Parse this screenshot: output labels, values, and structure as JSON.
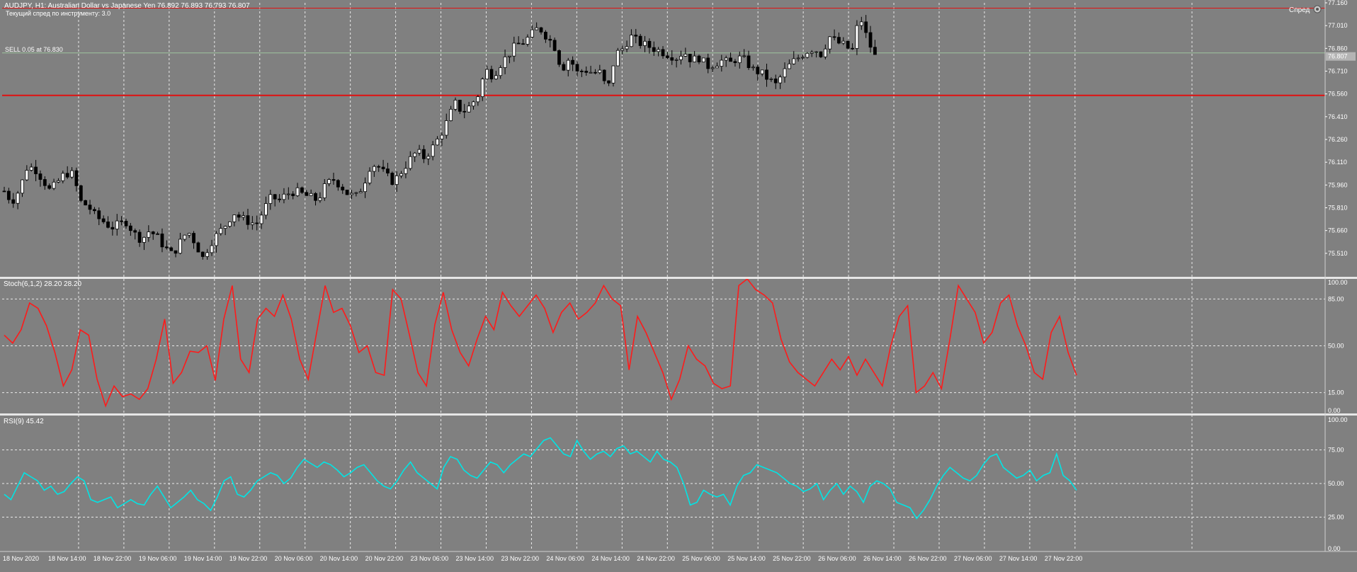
{
  "chart_data": {
    "type": "candlestick",
    "symbol_info": {
      "title": "AUDJPY, H1:  Australian Dollar vs Japanese Yen  76.892 76.893 76.793 76.807",
      "spread_text": "Текущий спред по инструменту: 3.0",
      "spread_label": "Спред",
      "sell_label": "SELL 0.05 at 76.830",
      "current_price_label": "76.807"
    },
    "price_axis": {
      "ylim": [
        75.36,
        77.16
      ],
      "ticks": [
        77.16,
        77.01,
        76.86,
        76.71,
        76.56,
        76.41,
        76.26,
        76.11,
        75.96,
        75.81,
        75.66,
        75.51
      ],
      "tick_labels": [
        "77.160",
        "77.010",
        "76.860",
        "76.710",
        "76.560",
        "76.410",
        "76.260",
        "76.110",
        "75.960",
        "75.810",
        "75.660",
        "75.510"
      ]
    },
    "levels": [
      {
        "name": "resistance",
        "price": 77.125,
        "color": "#e01010"
      },
      {
        "name": "sell-entry",
        "price": 76.83,
        "color": "#9ec49e"
      },
      {
        "name": "support",
        "price": 76.55,
        "color": "#e01010"
      }
    ],
    "time_axis": {
      "labels": [
        "18 Nov 2020",
        "18 Nov 14:00",
        "18 Nov 22:00",
        "19 Nov 06:00",
        "19 Nov 14:00",
        "19 Nov 22:00",
        "20 Nov 06:00",
        "20 Nov 14:00",
        "20 Nov 22:00",
        "23 Nov 06:00",
        "23 Nov 14:00",
        "23 Nov 22:00",
        "24 Nov 06:00",
        "24 Nov 14:00",
        "24 Nov 22:00",
        "25 Nov 06:00",
        "25 Nov 14:00",
        "25 Nov 22:00",
        "26 Nov 06:00",
        "26 Nov 14:00",
        "26 Nov 22:00",
        "27 Nov 06:00",
        "27 Nov 14:00",
        "27 Nov 22:00"
      ]
    },
    "close_path": [
      75.92,
      75.85,
      75.93,
      76.08,
      76.07,
      76.0,
      75.92,
      75.98,
      76.04,
      76.03,
      75.85,
      75.82,
      75.75,
      75.72,
      75.68,
      75.7,
      75.72,
      75.64,
      75.6,
      75.66,
      75.62,
      75.55,
      75.5,
      75.58,
      75.66,
      75.58,
      75.48,
      75.58,
      75.64,
      75.7,
      75.78,
      75.74,
      75.72,
      75.7,
      75.8,
      75.88,
      75.86,
      75.9,
      75.92,
      75.9,
      75.88,
      75.86,
      75.95,
      76.0,
      75.96,
      75.9,
      75.88,
      75.96,
      76.1,
      76.08,
      76.02,
      75.98,
      76.05,
      76.12,
      76.18,
      76.14,
      76.2,
      76.28,
      76.38,
      76.5,
      76.44,
      76.48,
      76.55,
      76.72,
      76.68,
      76.76,
      76.82,
      76.88,
      76.9,
      76.95,
      77.0,
      76.94,
      76.88,
      76.72,
      76.8,
      76.7,
      76.72,
      76.7,
      76.7,
      76.58,
      76.82,
      76.86,
      76.94,
      76.9,
      76.88,
      76.86,
      76.84,
      76.82,
      76.8,
      76.84,
      76.78,
      76.8,
      76.74,
      76.76,
      76.78,
      76.76,
      76.8,
      76.78,
      76.72,
      76.7,
      76.66,
      76.62,
      76.7,
      76.76,
      76.8,
      76.84,
      76.86,
      76.82,
      76.94,
      76.9,
      76.88,
      76.84,
      77.08,
      76.92,
      76.807
    ],
    "indicators": [
      {
        "name": "Stoch(6,1,2)",
        "label": "Stoch(6,1,2) 28.20 28.20",
        "ylim": [
          0,
          100
        ],
        "levels": [
          15,
          50,
          85
        ],
        "axis_labels": [
          "100.00",
          "85.00",
          "50.00",
          "15.00",
          "0.00"
        ],
        "axis_values": [
          100,
          85,
          50,
          15,
          0
        ],
        "color": "#ff1a1a",
        "values": [
          58,
          52,
          62,
          82,
          78,
          65,
          45,
          20,
          32,
          62,
          58,
          25,
          5,
          20,
          12,
          14,
          10,
          18,
          40,
          70,
          22,
          30,
          46,
          45,
          50,
          24,
          70,
          95,
          40,
          30,
          70,
          78,
          72,
          88,
          70,
          40,
          25,
          60,
          95,
          75,
          78,
          65,
          45,
          50,
          30,
          28,
          92,
          85,
          58,
          30,
          20,
          66,
          90,
          62,
          45,
          35,
          55,
          72,
          62,
          90,
          80,
          72,
          80,
          88,
          78,
          60,
          75,
          82,
          70,
          75,
          82,
          95,
          85,
          80,
          32,
          72,
          60,
          45,
          30,
          10,
          25,
          50,
          40,
          35,
          22,
          18,
          20,
          95,
          100,
          92,
          88,
          82,
          55,
          38,
          30,
          25,
          20,
          30,
          40,
          32,
          42,
          28,
          40,
          30,
          20,
          50,
          72,
          80,
          15,
          20,
          30,
          18,
          55,
          95,
          85,
          75,
          52,
          60,
          82,
          88,
          65,
          50,
          30,
          25,
          60,
          72,
          45,
          28
        ]
      },
      {
        "name": "RSI(9)",
        "label": "RSI(9) 45.42",
        "ylim": [
          0,
          100
        ],
        "levels": [
          25,
          50,
          75
        ],
        "axis_labels": [
          "100.00",
          "75.00",
          "50.00",
          "25.00",
          "0.00"
        ],
        "axis_values": [
          100,
          75,
          50,
          25,
          0
        ],
        "color": "#00e5e5",
        "values": [
          42,
          38,
          48,
          58,
          55,
          52,
          45,
          48,
          42,
          44,
          50,
          55,
          52,
          38,
          36,
          38,
          40,
          32,
          35,
          38,
          35,
          34,
          42,
          48,
          40,
          32,
          36,
          40,
          45,
          38,
          35,
          30,
          40,
          52,
          55,
          42,
          40,
          45,
          52,
          55,
          58,
          56,
          50,
          54,
          62,
          68,
          65,
          62,
          66,
          64,
          60,
          55,
          58,
          62,
          64,
          58,
          52,
          48,
          46,
          52,
          60,
          66,
          58,
          54,
          50,
          46,
          62,
          70,
          68,
          60,
          56,
          54,
          60,
          66,
          64,
          58,
          64,
          68,
          72,
          70,
          76,
          82,
          84,
          78,
          72,
          70,
          82,
          74,
          68,
          72,
          74,
          70,
          76,
          78,
          72,
          74,
          70,
          66,
          74,
          68,
          66,
          62,
          50,
          34,
          36,
          45,
          42,
          40,
          42,
          34,
          48,
          56,
          58,
          64,
          62,
          60,
          58,
          54,
          50,
          48,
          44,
          46,
          50,
          38,
          45,
          50,
          42,
          48,
          44,
          36,
          48,
          52,
          50,
          46,
          36,
          34,
          32,
          24,
          30,
          38,
          48,
          56,
          62,
          58,
          54,
          52,
          56,
          64,
          70,
          72,
          62,
          58,
          54,
          56,
          60,
          52,
          56,
          58,
          72,
          56,
          52,
          45
        ]
      }
    ]
  }
}
